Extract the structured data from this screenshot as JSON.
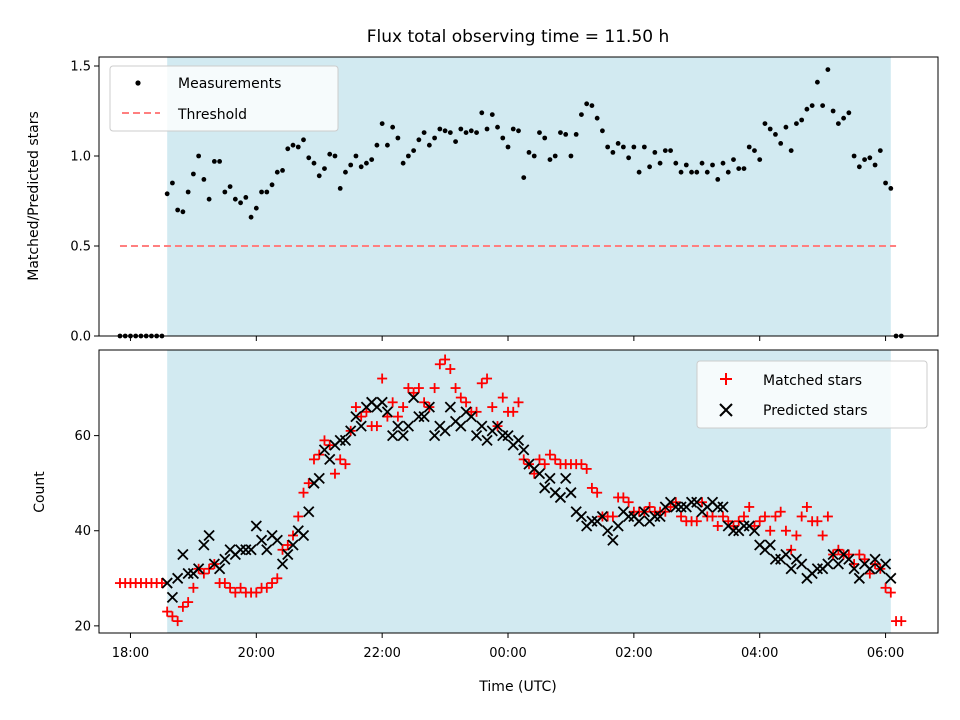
{
  "chart_data": [
    {
      "type": "scatter",
      "title": "Flux total observing time = 11.50 h",
      "xlabel": "",
      "ylabel": "Matched/Predicted stars",
      "xlim": [
        "17:30",
        "06:50"
      ],
      "ylim": [
        0,
        1.55
      ],
      "yticks": [
        "0.0",
        "0.5",
        "1.0",
        "1.5"
      ],
      "shaded_region": {
        "start": "18:35",
        "end": "06:05",
        "color": "#add8e6"
      },
      "threshold": {
        "name": "Threshold",
        "value": 0.5,
        "x_start": "17:50",
        "x_end": "06:10",
        "color": "#ff7f7f"
      },
      "legend": {
        "position": "top-left",
        "entries": [
          "Measurements",
          "Threshold"
        ]
      },
      "series": [
        {
          "name": "Measurements",
          "color": "#000000",
          "x": [
            "17:50",
            "17:55",
            "18:00",
            "18:05",
            "18:10",
            "18:15",
            "18:20",
            "18:25",
            "18:30",
            "18:35",
            "18:40",
            "18:45",
            "18:50",
            "18:55",
            "19:00",
            "19:05",
            "19:10",
            "19:15",
            "19:20",
            "19:25",
            "19:30",
            "19:35",
            "19:40",
            "19:45",
            "19:50",
            "19:55",
            "20:00",
            "20:05",
            "20:10",
            "20:15",
            "20:20",
            "20:25",
            "20:30",
            "20:35",
            "20:40",
            "20:45",
            "20:50",
            "20:55",
            "21:00",
            "21:05",
            "21:10",
            "21:15",
            "21:20",
            "21:25",
            "21:30",
            "21:35",
            "21:40",
            "21:45",
            "21:50",
            "21:55",
            "22:00",
            "22:05",
            "22:10",
            "22:15",
            "22:20",
            "22:25",
            "22:30",
            "22:35",
            "22:40",
            "22:45",
            "22:50",
            "22:55",
            "23:00",
            "23:05",
            "23:10",
            "23:15",
            "23:20",
            "23:25",
            "23:30",
            "23:35",
            "23:40",
            "23:45",
            "23:50",
            "23:55",
            "00:00",
            "00:05",
            "00:10",
            "00:15",
            "00:20",
            "00:25",
            "00:30",
            "00:35",
            "00:40",
            "00:45",
            "00:50",
            "00:55",
            "01:00",
            "01:05",
            "01:10",
            "01:15",
            "01:20",
            "01:25",
            "01:30",
            "01:35",
            "01:40",
            "01:45",
            "01:50",
            "01:55",
            "02:00",
            "02:05",
            "02:10",
            "02:15",
            "02:20",
            "02:25",
            "02:30",
            "02:35",
            "02:40",
            "02:45",
            "02:50",
            "02:55",
            "03:00",
            "03:05",
            "03:10",
            "03:15",
            "03:20",
            "03:25",
            "03:30",
            "03:35",
            "03:40",
            "03:45",
            "03:50",
            "03:55",
            "04:00",
            "04:05",
            "04:10",
            "04:15",
            "04:20",
            "04:25",
            "04:30",
            "04:35",
            "04:40",
            "04:45",
            "04:50",
            "04:55",
            "05:00",
            "05:05",
            "05:10",
            "05:15",
            "05:20",
            "05:25",
            "05:30",
            "05:35",
            "05:40",
            "05:45",
            "05:50",
            "05:55",
            "06:00",
            "06:05",
            "06:10",
            "06:15"
          ],
          "y": [
            0,
            0,
            0,
            0,
            0,
            0,
            0,
            0,
            0,
            0.79,
            0.85,
            0.7,
            0.69,
            0.8,
            0.9,
            1.0,
            0.87,
            0.76,
            0.97,
            0.97,
            0.8,
            0.83,
            0.76,
            0.74,
            0.77,
            0.66,
            0.71,
            0.8,
            0.8,
            0.84,
            0.91,
            0.92,
            1.04,
            1.06,
            1.05,
            1.09,
            0.99,
            0.96,
            0.89,
            0.93,
            1.01,
            1.0,
            0.82,
            0.91,
            0.95,
            1.0,
            0.94,
            0.96,
            0.98,
            1.06,
            1.18,
            1.06,
            1.16,
            1.1,
            0.96,
            1.0,
            1.03,
            1.09,
            1.13,
            1.06,
            1.1,
            1.15,
            1.14,
            1.13,
            1.08,
            1.15,
            1.13,
            1.14,
            1.13,
            1.24,
            1.15,
            1.23,
            1.16,
            1.1,
            1.05,
            1.15,
            1.14,
            0.88,
            1.02,
            1.0,
            1.13,
            1.1,
            0.98,
            1.0,
            1.13,
            1.12,
            1.0,
            1.12,
            1.23,
            1.29,
            1.28,
            1.21,
            1.14,
            1.05,
            1.02,
            1.07,
            1.05,
            0.99,
            1.05,
            0.91,
            1.05,
            0.94,
            1.02,
            0.96,
            1.03,
            1.03,
            0.96,
            0.91,
            0.95,
            0.91,
            0.91,
            0.96,
            0.91,
            0.95,
            0.87,
            0.96,
            0.91,
            0.98,
            0.93,
            0.93,
            1.05,
            1.03,
            0.98,
            1.18,
            1.15,
            1.12,
            1.07,
            1.16,
            1.03,
            1.18,
            1.2,
            1.26,
            1.28,
            1.41,
            1.28,
            1.48,
            1.25,
            1.18,
            1.21,
            1.24,
            1.0,
            0.94,
            0.98,
            0.99,
            0.95,
            1.03,
            0.85,
            0.82,
            0.0,
            0.0
          ]
        }
      ]
    },
    {
      "type": "scatter",
      "title": "",
      "xlabel": "Time (UTC)",
      "ylabel": "Count",
      "xlim": [
        "17:30",
        "06:50"
      ],
      "ylim": [
        18.5,
        78
      ],
      "yticks": [
        "20",
        "40",
        "60"
      ],
      "xticks": [
        "18:00",
        "20:00",
        "22:00",
        "00:00",
        "02:00",
        "04:00",
        "06:00"
      ],
      "shaded_region": {
        "start": "18:35",
        "end": "06:05",
        "color": "#add8e6"
      },
      "legend": {
        "position": "top-right",
        "entries": [
          "Matched stars",
          "Predicted stars"
        ]
      },
      "series": [
        {
          "name": "Matched stars",
          "marker": "+",
          "color": "#ff0000",
          "x": [
            "17:50",
            "17:55",
            "18:00",
            "18:05",
            "18:10",
            "18:15",
            "18:20",
            "18:25",
            "18:30",
            "18:35",
            "18:40",
            "18:45",
            "18:50",
            "18:55",
            "19:00",
            "19:05",
            "19:10",
            "19:15",
            "19:20",
            "19:25",
            "19:30",
            "19:35",
            "19:40",
            "19:45",
            "19:50",
            "19:55",
            "20:00",
            "20:05",
            "20:10",
            "20:15",
            "20:20",
            "20:25",
            "20:30",
            "20:35",
            "20:40",
            "20:45",
            "20:50",
            "20:55",
            "21:00",
            "21:05",
            "21:10",
            "21:15",
            "21:20",
            "21:25",
            "21:30",
            "21:35",
            "21:40",
            "21:45",
            "21:50",
            "21:55",
            "22:00",
            "22:05",
            "22:10",
            "22:15",
            "22:20",
            "22:25",
            "22:30",
            "22:35",
            "22:40",
            "22:45",
            "22:50",
            "22:55",
            "23:00",
            "23:05",
            "23:10",
            "23:15",
            "23:20",
            "23:25",
            "23:30",
            "23:35",
            "23:40",
            "23:45",
            "23:50",
            "23:55",
            "00:00",
            "00:05",
            "00:10",
            "00:15",
            "00:20",
            "00:25",
            "00:30",
            "00:35",
            "00:40",
            "00:45",
            "00:50",
            "00:55",
            "01:00",
            "01:05",
            "01:10",
            "01:15",
            "01:20",
            "01:25",
            "01:30",
            "01:35",
            "01:40",
            "01:45",
            "01:50",
            "01:55",
            "02:00",
            "02:05",
            "02:10",
            "02:15",
            "02:20",
            "02:25",
            "02:30",
            "02:35",
            "02:40",
            "02:45",
            "02:50",
            "02:55",
            "03:00",
            "03:05",
            "03:10",
            "03:15",
            "03:20",
            "03:25",
            "03:30",
            "03:35",
            "03:40",
            "03:45",
            "03:50",
            "03:55",
            "04:00",
            "04:05",
            "04:10",
            "04:15",
            "04:20",
            "04:25",
            "04:30",
            "04:35",
            "04:40",
            "04:45",
            "04:50",
            "04:55",
            "05:00",
            "05:05",
            "05:10",
            "05:15",
            "05:20",
            "05:25",
            "05:30",
            "05:35",
            "05:40",
            "05:45",
            "05:50",
            "05:55",
            "06:00",
            "06:05",
            "06:10",
            "06:15"
          ],
          "y": [
            29,
            29,
            29,
            29,
            29,
            29,
            29,
            29,
            29,
            23,
            22,
            21,
            24,
            25,
            28,
            32,
            31,
            32,
            33,
            29,
            29,
            28,
            27,
            28,
            27,
            27,
            27,
            28,
            28,
            29,
            30,
            36,
            37,
            39,
            43,
            48,
            50,
            55,
            56,
            59,
            58,
            52,
            55,
            54,
            61,
            66,
            64,
            65,
            62,
            62,
            72,
            64,
            67,
            64,
            66,
            70,
            69,
            70,
            67,
            66,
            70,
            75,
            76,
            74,
            70,
            68,
            67,
            65,
            65,
            71,
            72,
            66,
            62,
            68,
            65,
            65,
            67,
            55,
            54,
            52,
            55,
            54,
            56,
            55,
            54,
            54,
            54,
            54,
            54,
            53,
            49,
            48,
            43,
            43,
            43,
            47,
            47,
            46,
            44,
            44,
            44,
            45,
            44,
            44,
            44,
            45,
            46,
            43,
            42,
            42,
            42,
            46,
            43,
            43,
            41,
            43,
            42,
            41,
            42,
            43,
            45,
            41,
            42,
            43,
            40,
            43,
            44,
            40,
            36,
            39,
            43,
            45,
            42,
            42,
            39,
            43,
            35,
            36,
            35,
            35,
            33,
            35,
            34,
            31,
            33,
            32,
            28,
            27,
            21,
            21
          ]
        },
        {
          "name": "Predicted stars",
          "marker": "x",
          "color": "#000000",
          "x": [
            "18:35",
            "18:40",
            "18:45",
            "18:50",
            "18:55",
            "19:00",
            "19:05",
            "19:10",
            "19:15",
            "19:20",
            "19:25",
            "19:30",
            "19:35",
            "19:40",
            "19:45",
            "19:50",
            "19:55",
            "20:00",
            "20:05",
            "20:10",
            "20:15",
            "20:20",
            "20:25",
            "20:30",
            "20:35",
            "20:40",
            "20:45",
            "20:50",
            "20:55",
            "21:00",
            "21:05",
            "21:10",
            "21:15",
            "21:20",
            "21:25",
            "21:30",
            "21:35",
            "21:40",
            "21:45",
            "21:50",
            "21:55",
            "22:00",
            "22:05",
            "22:10",
            "22:15",
            "22:20",
            "22:25",
            "22:30",
            "22:35",
            "22:40",
            "22:45",
            "22:50",
            "22:55",
            "23:00",
            "23:05",
            "23:10",
            "23:15",
            "23:20",
            "23:25",
            "23:30",
            "23:35",
            "23:40",
            "23:45",
            "23:50",
            "23:55",
            "00:00",
            "00:05",
            "00:10",
            "00:15",
            "00:20",
            "00:25",
            "00:30",
            "00:35",
            "00:40",
            "00:45",
            "00:50",
            "00:55",
            "01:00",
            "01:05",
            "01:10",
            "01:15",
            "01:20",
            "01:25",
            "01:30",
            "01:35",
            "01:40",
            "01:45",
            "01:50",
            "01:55",
            "02:00",
            "02:05",
            "02:10",
            "02:15",
            "02:20",
            "02:25",
            "02:30",
            "02:35",
            "02:40",
            "02:45",
            "02:50",
            "02:55",
            "03:00",
            "03:05",
            "03:10",
            "03:15",
            "03:20",
            "03:25",
            "03:30",
            "03:35",
            "03:40",
            "03:45",
            "03:50",
            "03:55",
            "04:00",
            "04:05",
            "04:10",
            "04:15",
            "04:20",
            "04:25",
            "04:30",
            "04:35",
            "04:40",
            "04:45",
            "04:50",
            "04:55",
            "05:00",
            "05:05",
            "05:10",
            "05:15",
            "05:20",
            "05:25",
            "05:30",
            "05:35",
            "05:40",
            "05:45",
            "05:50",
            "05:55",
            "06:00",
            "06:05"
          ],
          "y": [
            29,
            26,
            30,
            35,
            31,
            31,
            32,
            37,
            39,
            33,
            32,
            34,
            36,
            35,
            36,
            36,
            36,
            41,
            38,
            36,
            39,
            38,
            33,
            35,
            37,
            40,
            39,
            44,
            50,
            51,
            57,
            55,
            58,
            59,
            59,
            61,
            64,
            62,
            66,
            67,
            66,
            67,
            65,
            60,
            62,
            60,
            62,
            68,
            64,
            64,
            66,
            60,
            62,
            61,
            66,
            63,
            62,
            65,
            64,
            60,
            62,
            59,
            61,
            62,
            60,
            60,
            58,
            59,
            57,
            54,
            53,
            52,
            49,
            51,
            48,
            47,
            51,
            48,
            44,
            43,
            41,
            42,
            42,
            43,
            40,
            38,
            41,
            44,
            43,
            43,
            42,
            44,
            42,
            43,
            43,
            45,
            46,
            45,
            45,
            45,
            46,
            46,
            44,
            45,
            46,
            45,
            45,
            41,
            40,
            40,
            41,
            41,
            40,
            37,
            36,
            37,
            34,
            34,
            35,
            32,
            34,
            33,
            30,
            31,
            32,
            32,
            33,
            35,
            33,
            35,
            34,
            32,
            30,
            33,
            32,
            34,
            32,
            33,
            30
          ]
        }
      ]
    }
  ]
}
